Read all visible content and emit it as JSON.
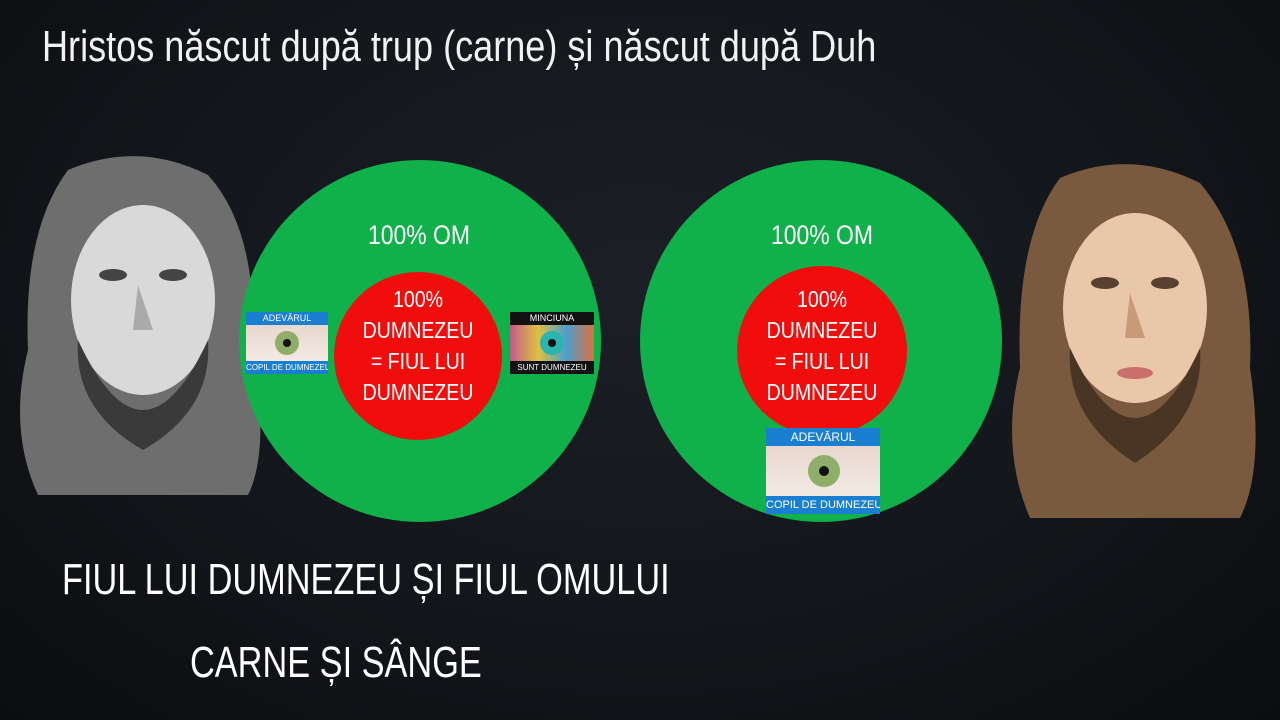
{
  "title": "Hristos născut după trup (carne) și născut după Duh",
  "left_diagram": {
    "outer_label": "100% OM",
    "inner_lines": [
      "100%",
      "DUMNEZEU",
      "= FIUL LUI",
      "DUMNEZEU"
    ],
    "truth_card": {
      "top": "ADEVĂRUL",
      "bottom": "COPIL DE DUMNEZEU",
      "eye_color": "#8fae6a"
    },
    "lie_card": {
      "top": "MINCIUNA",
      "bottom": "SUNT DUMNEZEU",
      "eye_color": "#2bb5b0"
    }
  },
  "right_diagram": {
    "outer_label": "100% OM",
    "inner_lines": [
      "100%",
      "DUMNEZEU",
      "= FIUL LUI",
      "DUMNEZEU"
    ],
    "truth_card": {
      "top": "ADEVĂRUL",
      "bottom": "COPIL DE DUMNEZEU",
      "eye_color": "#8fae6a"
    }
  },
  "bottom_text": {
    "line1": "FIUL LUI DUMNEZEU ȘI FIUL OMULUI",
    "line2": "CARNE ȘI SÂNGE"
  },
  "colors": {
    "outer": "#10b04a",
    "inner": "#f20d0d",
    "card_blue": "#1a7fd0",
    "card_black": "#111111"
  }
}
